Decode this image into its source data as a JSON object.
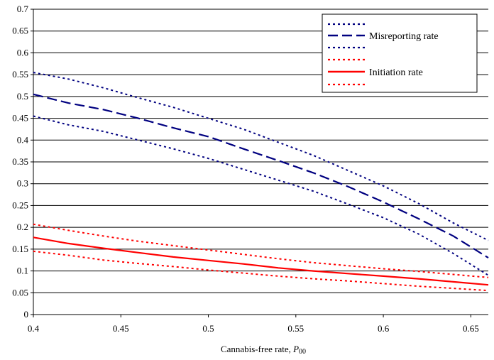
{
  "chart_data": {
    "type": "line",
    "xlabel": "Cannabis-free rate, ",
    "xlabel_italic": "P",
    "xlabel_sub": "00",
    "ylabel": "",
    "xlim": [
      0.4,
      0.66
    ],
    "ylim": [
      0,
      0.7
    ],
    "xticks": [
      "0.4",
      "0.45",
      "0.5",
      "0.55",
      "0.6",
      "0.65"
    ],
    "yticks": [
      "0",
      "0.05",
      "0.1",
      "0.15",
      "0.2",
      "0.25",
      "0.3",
      "0.35",
      "0.4",
      "0.45",
      "0.5",
      "0.55",
      "0.6",
      "0.65",
      "0.7"
    ],
    "grid": "horizontal",
    "legend_position": "top-right",
    "series": [
      {
        "name": "",
        "color": "#000080",
        "style": "dotted",
        "x": [
          0.4,
          0.42,
          0.44,
          0.46,
          0.48,
          0.5,
          0.52,
          0.54,
          0.56,
          0.58,
          0.6,
          0.62,
          0.64,
          0.66
        ],
        "y": [
          0.555,
          0.54,
          0.52,
          0.497,
          0.475,
          0.45,
          0.425,
          0.395,
          0.365,
          0.33,
          0.295,
          0.255,
          0.21,
          0.17
        ]
      },
      {
        "name": "Misreporting rate",
        "color": "#000080",
        "style": "dashed",
        "x": [
          0.4,
          0.42,
          0.44,
          0.46,
          0.48,
          0.5,
          0.52,
          0.54,
          0.56,
          0.58,
          0.6,
          0.62,
          0.64,
          0.66
        ],
        "y": [
          0.505,
          0.485,
          0.47,
          0.45,
          0.428,
          0.408,
          0.38,
          0.353,
          0.325,
          0.293,
          0.258,
          0.22,
          0.18,
          0.13
        ]
      },
      {
        "name": "",
        "color": "#000080",
        "style": "dotted",
        "x": [
          0.4,
          0.42,
          0.44,
          0.46,
          0.48,
          0.5,
          0.52,
          0.54,
          0.56,
          0.58,
          0.6,
          0.62,
          0.64,
          0.66
        ],
        "y": [
          0.455,
          0.435,
          0.42,
          0.4,
          0.38,
          0.358,
          0.333,
          0.308,
          0.283,
          0.253,
          0.222,
          0.185,
          0.14,
          0.09
        ]
      },
      {
        "name": "",
        "color": "#ff0000",
        "style": "dotted",
        "x": [
          0.4,
          0.42,
          0.44,
          0.46,
          0.48,
          0.5,
          0.52,
          0.54,
          0.56,
          0.58,
          0.6,
          0.62,
          0.64,
          0.66
        ],
        "y": [
          0.207,
          0.193,
          0.18,
          0.168,
          0.158,
          0.148,
          0.138,
          0.128,
          0.119,
          0.112,
          0.105,
          0.099,
          0.092,
          0.085
        ]
      },
      {
        "name": "Initiation rate",
        "color": "#ff0000",
        "style": "solid",
        "x": [
          0.4,
          0.42,
          0.44,
          0.46,
          0.48,
          0.5,
          0.52,
          0.54,
          0.56,
          0.58,
          0.6,
          0.62,
          0.64,
          0.66
        ],
        "y": [
          0.177,
          0.163,
          0.152,
          0.142,
          0.132,
          0.124,
          0.116,
          0.107,
          0.1,
          0.094,
          0.088,
          0.082,
          0.075,
          0.068
        ]
      },
      {
        "name": "",
        "color": "#ff0000",
        "style": "dotted",
        "x": [
          0.4,
          0.42,
          0.44,
          0.46,
          0.48,
          0.5,
          0.52,
          0.54,
          0.56,
          0.58,
          0.6,
          0.62,
          0.64,
          0.66
        ],
        "y": [
          0.145,
          0.136,
          0.125,
          0.117,
          0.11,
          0.102,
          0.095,
          0.088,
          0.082,
          0.077,
          0.071,
          0.065,
          0.06,
          0.055
        ]
      }
    ]
  }
}
